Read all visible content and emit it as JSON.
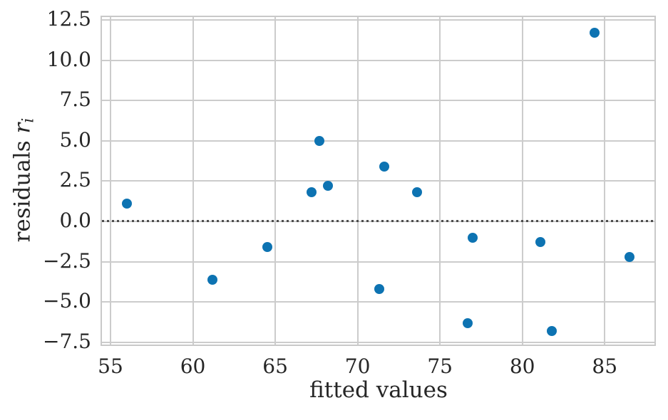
{
  "figure": {
    "background": "#ffffff",
    "text_color": "#262626",
    "grid_color": "#cccccc",
    "spine_color": "#c9c9c9",
    "zero_line_color": "#4d4d4d",
    "marker_color": "#0d73b2"
  },
  "chart_data": {
    "type": "scatter",
    "title": "",
    "xlabel": "fitted values",
    "ylabel": "residuals r_i",
    "ylabel_parts": {
      "prefix": "residuals ",
      "symbol": "r",
      "subscript": "i"
    },
    "xlim": [
      54.48,
      88.02
    ],
    "ylim": [
      -7.64,
      12.68
    ],
    "x_ticks": [
      55,
      60,
      65,
      70,
      75,
      80,
      85
    ],
    "y_ticks": [
      12.5,
      10.0,
      7.5,
      5.0,
      2.5,
      0.0,
      -2.5,
      -5.0,
      -7.5
    ],
    "x_tick_labels": [
      "55",
      "60",
      "65",
      "70",
      "75",
      "80",
      "85"
    ],
    "y_tick_labels": [
      "12.5",
      "10.0",
      "7.5",
      "5.0",
      "2.5",
      "0.0",
      "−2.5",
      "−5.0",
      "−7.5"
    ],
    "grid": true,
    "legend": false,
    "reference_line": {
      "y": 0.0,
      "style": "dotted"
    },
    "points": [
      {
        "x": 56.0,
        "y": 1.1
      },
      {
        "x": 61.2,
        "y": -3.6
      },
      {
        "x": 64.5,
        "y": -1.6
      },
      {
        "x": 67.2,
        "y": 1.8
      },
      {
        "x": 67.7,
        "y": 5.0
      },
      {
        "x": 68.2,
        "y": 2.2
      },
      {
        "x": 71.3,
        "y": -4.2
      },
      {
        "x": 71.6,
        "y": 3.4
      },
      {
        "x": 73.6,
        "y": 1.8
      },
      {
        "x": 76.7,
        "y": -6.3
      },
      {
        "x": 77.0,
        "y": -1.0
      },
      {
        "x": 81.1,
        "y": -1.3
      },
      {
        "x": 81.8,
        "y": -6.8
      },
      {
        "x": 84.4,
        "y": 11.7
      },
      {
        "x": 86.5,
        "y": -2.2
      }
    ]
  }
}
